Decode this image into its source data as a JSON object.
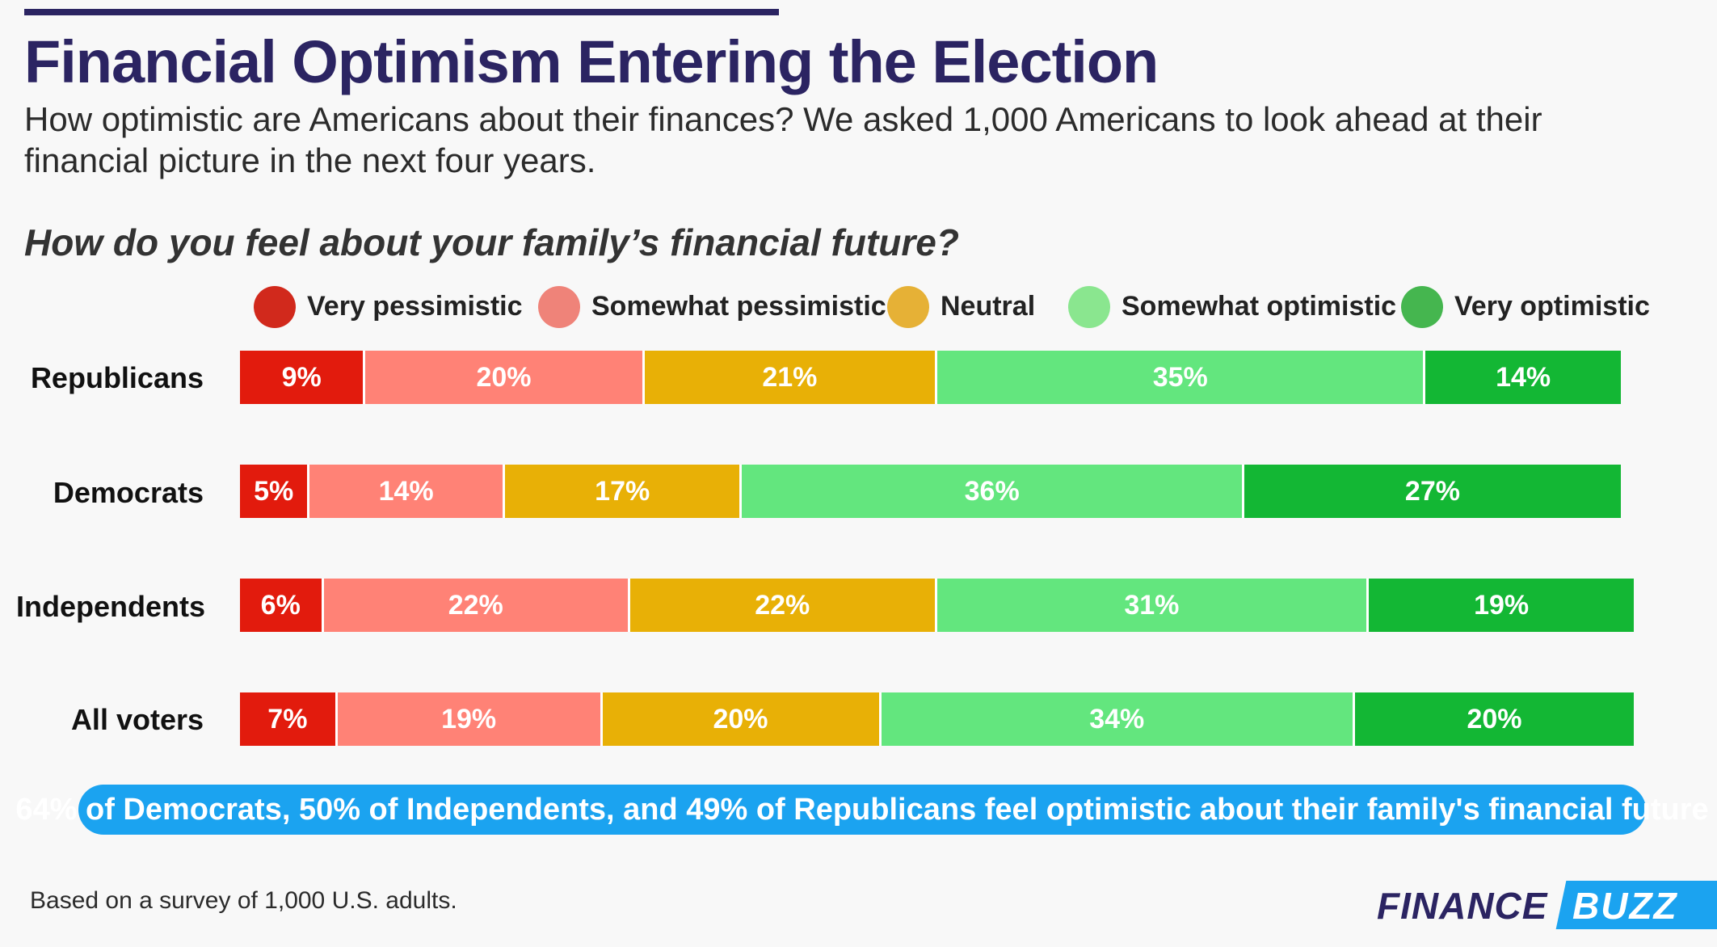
{
  "header": {
    "title": "Financial Optimism Entering the Election",
    "subtitle": "How optimistic are Americans about their finances? We asked 1,000 Americans to look ahead at their financial picture in the next four years."
  },
  "chart_data": {
    "type": "bar",
    "orientation": "horizontal",
    "stacked": true,
    "title": "How do you feel about your family’s financial future?",
    "categories": [
      "Republicans",
      "Democrats",
      "Independents",
      "All voters"
    ],
    "series": [
      {
        "name": "Very pessimistic",
        "color": "#e21b0d",
        "values": [
          9,
          5,
          6,
          7
        ],
        "labels": [
          "9%",
          "5%",
          "6%",
          "7%"
        ]
      },
      {
        "name": "Somewhat pessimistic",
        "color": "#ff8276",
        "values": [
          20,
          14,
          22,
          19
        ],
        "labels": [
          "20%",
          "14%",
          "22%",
          "19%"
        ]
      },
      {
        "name": "Neutral",
        "color": "#e8b006",
        "values": [
          21,
          17,
          22,
          20
        ],
        "labels": [
          "21%",
          "17%",
          "22%",
          "20%"
        ]
      },
      {
        "name": "Somewhat optimistic",
        "color": "#63e67e",
        "values": [
          35,
          36,
          31,
          34
        ],
        "labels": [
          "35%",
          "36%",
          "31%",
          "34%"
        ]
      },
      {
        "name": "Very optimistic",
        "color": "#13b734",
        "values": [
          14,
          27,
          19,
          20
        ],
        "labels": [
          "14%",
          "27%",
          "19%",
          "20%"
        ]
      }
    ],
    "legend": {
      "placement": "top",
      "items": [
        {
          "label": "Very pessimistic",
          "color": "#d1291c"
        },
        {
          "label": "Somewhat pessimistic",
          "color": "#ef8379"
        },
        {
          "label": "Neutral",
          "color": "#e6b136"
        },
        {
          "label": "Somewhat optimistic",
          "color": "#8ae68f"
        },
        {
          "label": "Very optimistic",
          "color": "#45b64f"
        }
      ]
    },
    "unit": "%"
  },
  "callout": {
    "text": "64% of Democrats, 50% of Independents, and 49% of Republicans feel optimistic about their family's financial future",
    "color": "#1ba3f0"
  },
  "footer": {
    "note": "Based on a survey of 1,000 U.S. adults.",
    "logo_part1": "FINANCE",
    "logo_part2": "BUZZ"
  }
}
